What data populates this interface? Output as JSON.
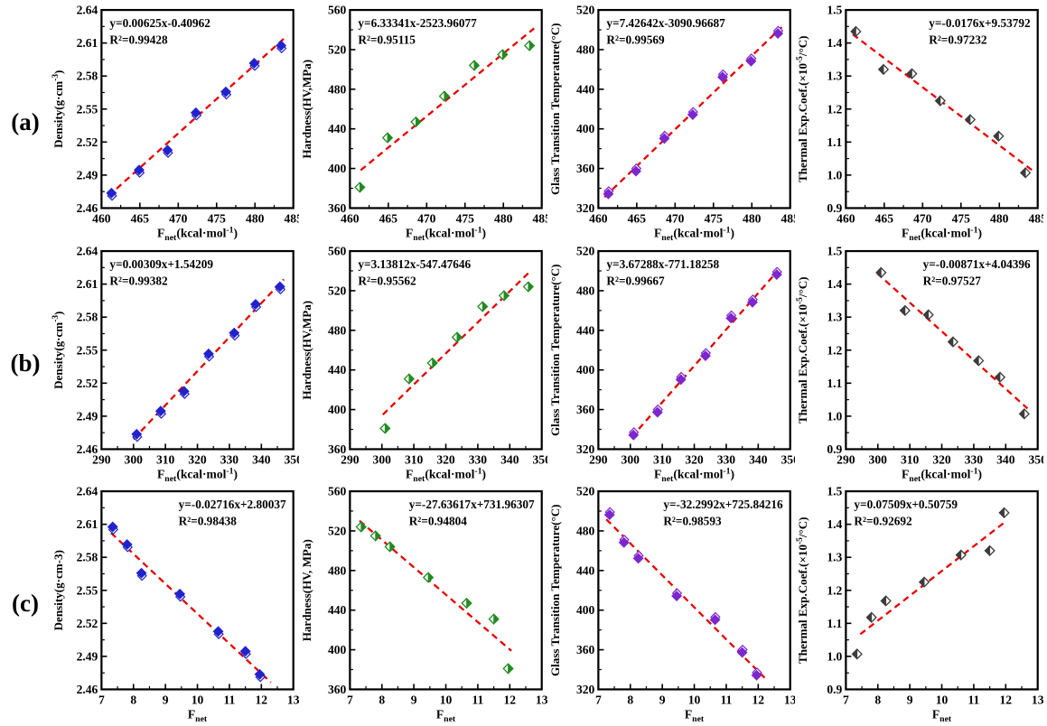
{
  "figure": {
    "background": "#ffffff",
    "row_labels": [
      {
        "id": "a",
        "text": "(a)"
      },
      {
        "id": "b",
        "text": "(b)"
      },
      {
        "id": "c",
        "text": "(c)"
      }
    ]
  },
  "colors": {
    "fit_line": "#e60000",
    "axis": "#000000",
    "density_marker": "#2222cc",
    "hardness_marker": "#228B22",
    "tg_marker": "#7D26CD",
    "tec_marker": "#3c3c3c"
  },
  "chart_data": [
    {
      "id": "a1",
      "type": "scatter",
      "equation": "y=0.00625x-0.40962",
      "r2": "0.99428",
      "eq_pos": "left",
      "xlabel": [
        {
          "t": "F"
        },
        {
          "t": "net",
          "sub": true
        },
        {
          "t": "(kcal·mol"
        },
        {
          "t": "-1",
          "sup": true
        },
        {
          "t": ")"
        }
      ],
      "ylabel": [
        {
          "t": "Density(g·cm"
        },
        {
          "t": "-3",
          "sup": true
        },
        {
          "t": ")"
        }
      ],
      "xlim": [
        460,
        485
      ],
      "xticks": [
        460,
        465,
        470,
        475,
        480,
        485
      ],
      "x_decimals": 0,
      "ylim": [
        2.46,
        2.64
      ],
      "yticks": [
        2.46,
        2.49,
        2.52,
        2.55,
        2.58,
        2.61,
        2.64
      ],
      "y_decimals": 2,
      "points": {
        "x": [
          461.3,
          464.9,
          468.6,
          472.3,
          476.2,
          479.9,
          483.4
        ],
        "y": [
          2.473,
          2.494,
          2.512,
          2.546,
          2.565,
          2.591,
          2.607
        ]
      },
      "fit": {
        "slope": 0.00625,
        "intercept": -0.40962,
        "x_start": 460.9,
        "x_end": 484.2
      },
      "marker": {
        "style": "dual-down",
        "color": "#2222cc"
      }
    },
    {
      "id": "a2",
      "type": "scatter",
      "equation": "y=6.33341x-2523.96077",
      "r2": "0.95115",
      "eq_pos": "left",
      "xlabel": [
        {
          "t": "F"
        },
        {
          "t": "net",
          "sub": true
        },
        {
          "t": "(kcal·mol"
        },
        {
          "t": "-1",
          "sup": true
        },
        {
          "t": ")"
        }
      ],
      "ylabel": [
        {
          "t": "Hardness(HV,MPa)"
        }
      ],
      "xlim": [
        460,
        485
      ],
      "xticks": [
        460,
        465,
        470,
        475,
        480,
        485
      ],
      "x_decimals": 0,
      "ylim": [
        360,
        560
      ],
      "yticks": [
        360,
        400,
        440,
        480,
        520,
        560
      ],
      "y_decimals": 0,
      "points": {
        "x": [
          461.3,
          464.9,
          468.6,
          472.3,
          476.2,
          479.9,
          483.4
        ],
        "y": [
          381,
          431,
          447,
          473,
          504,
          515,
          524
        ]
      },
      "fit": {
        "slope": 6.33341,
        "intercept": -2523.96077,
        "x_start": 461.4,
        "x_end": 484.0
      },
      "marker": {
        "style": "half-right",
        "color": "#228B22"
      }
    },
    {
      "id": "a3",
      "type": "scatter",
      "equation": "y=7.42642x-3090.96687",
      "r2": "0.99569",
      "eq_pos": "left",
      "xlabel": [
        {
          "t": "F"
        },
        {
          "t": "net",
          "sub": true
        },
        {
          "t": "(kcal·mol"
        },
        {
          "t": "-1",
          "sup": true
        },
        {
          "t": ")"
        }
      ],
      "ylabel": [
        {
          "t": "Glass Transition Temperature(°C)"
        }
      ],
      "xlim": [
        460,
        485
      ],
      "xticks": [
        460,
        465,
        470,
        475,
        480,
        485
      ],
      "x_decimals": 0,
      "ylim": [
        320,
        520
      ],
      "yticks": [
        320,
        360,
        400,
        440,
        480,
        520
      ],
      "y_decimals": 0,
      "points": {
        "x": [
          461.3,
          464.9,
          468.6,
          472.3,
          476.2,
          479.9,
          483.4
        ],
        "y": [
          335,
          358,
          391,
          415,
          453,
          469,
          497
        ]
      },
      "fit": {
        "slope": 7.42642,
        "intercept": -3090.96687,
        "x_start": 460.8,
        "x_end": 483.9
      },
      "marker": {
        "style": "dual-up",
        "color": "#7D26CD"
      }
    },
    {
      "id": "a4",
      "type": "scatter",
      "equation": "y=-0.0176x+9.53792",
      "r2": "0.97232",
      "eq_pos": "right",
      "xlabel": [
        {
          "t": "F"
        },
        {
          "t": "net",
          "sub": true
        },
        {
          "t": "(kcal·mol"
        },
        {
          "t": "-1",
          "sup": true
        },
        {
          "t": ")"
        }
      ],
      "ylabel": [
        {
          "t": "Thermal Exp.Coef.(×10"
        },
        {
          "t": "-5",
          "sup": true
        },
        {
          "t": "/°C)"
        }
      ],
      "xlim": [
        460,
        485
      ],
      "xticks": [
        460,
        465,
        470,
        475,
        480,
        485
      ],
      "x_decimals": 0,
      "ylim": [
        0.9,
        1.5
      ],
      "yticks": [
        0.9,
        1.0,
        1.1,
        1.2,
        1.3,
        1.4,
        1.5
      ],
      "y_decimals": 1,
      "points": {
        "x": [
          461.3,
          464.9,
          468.6,
          472.3,
          476.2,
          479.9,
          483.4
        ],
        "y": [
          1.435,
          1.32,
          1.307,
          1.225,
          1.168,
          1.118,
          1.007
        ]
      },
      "fit": {
        "slope": -0.0176,
        "intercept": 9.53792,
        "x_start": 460.9,
        "x_end": 484.3
      },
      "marker": {
        "style": "half-left",
        "color": "#3c3c3c"
      }
    },
    {
      "id": "b1",
      "type": "scatter",
      "equation": "y=0.00309x+1.54209",
      "r2": "0.99382",
      "eq_pos": "left",
      "xlabel": [
        {
          "t": "F"
        },
        {
          "t": "net",
          "sub": true
        },
        {
          "t": "(kcal·mol"
        },
        {
          "t": "-1",
          "sup": true
        },
        {
          "t": ")"
        }
      ],
      "ylabel": [
        {
          "t": "Density(g·cm"
        },
        {
          "t": "-3",
          "sup": true
        },
        {
          "t": ")"
        }
      ],
      "xlim": [
        290,
        350
      ],
      "xticks": [
        290,
        300,
        310,
        320,
        330,
        340,
        350
      ],
      "x_decimals": 0,
      "ylim": [
        2.46,
        2.64
      ],
      "yticks": [
        2.46,
        2.49,
        2.52,
        2.55,
        2.58,
        2.61,
        2.64
      ],
      "y_decimals": 2,
      "points": {
        "x": [
          301.0,
          308.5,
          315.8,
          323.5,
          331.5,
          338.2,
          345.8
        ],
        "y": [
          2.473,
          2.494,
          2.512,
          2.546,
          2.565,
          2.591,
          2.607
        ]
      },
      "fit": {
        "slope": 0.00309,
        "intercept": 1.54209,
        "x_start": 300.0,
        "x_end": 347.0
      },
      "marker": {
        "style": "dual-down",
        "color": "#2222cc"
      }
    },
    {
      "id": "b2",
      "type": "scatter",
      "equation": "y=3.13812x-547.47646",
      "r2": "0.95562",
      "eq_pos": "left",
      "xlabel": [
        {
          "t": "F"
        },
        {
          "t": "net",
          "sub": true
        },
        {
          "t": "(kcal·mol"
        },
        {
          "t": "-1",
          "sup": true
        },
        {
          "t": ")"
        }
      ],
      "ylabel": [
        {
          "t": "Hardness(HV,MPa)"
        }
      ],
      "xlim": [
        290,
        350
      ],
      "xticks": [
        290,
        300,
        310,
        320,
        330,
        340,
        350
      ],
      "x_decimals": 0,
      "ylim": [
        360,
        560
      ],
      "yticks": [
        360,
        400,
        440,
        480,
        520,
        560
      ],
      "y_decimals": 0,
      "points": {
        "x": [
          301.0,
          308.5,
          315.8,
          323.5,
          331.5,
          338.2,
          345.8
        ],
        "y": [
          381,
          431,
          447,
          473,
          504,
          515,
          524
        ]
      },
      "fit": {
        "slope": 3.13812,
        "intercept": -547.47646,
        "x_start": 300.3,
        "x_end": 346.6
      },
      "marker": {
        "style": "half-right",
        "color": "#228B22"
      }
    },
    {
      "id": "b3",
      "type": "scatter",
      "equation": "y=3.67288x-771.18258",
      "r2": "0.99667",
      "eq_pos": "left",
      "xlabel": [
        {
          "t": "F"
        },
        {
          "t": "net",
          "sub": true
        },
        {
          "t": "(kcal·mol"
        },
        {
          "t": "-1",
          "sup": true
        },
        {
          "t": ")"
        }
      ],
      "ylabel": [
        {
          "t": "Glass Transition Temperature(°C)"
        }
      ],
      "xlim": [
        290,
        350
      ],
      "xticks": [
        290,
        300,
        310,
        320,
        330,
        340,
        350
      ],
      "x_decimals": 0,
      "ylim": [
        320,
        520
      ],
      "yticks": [
        320,
        360,
        400,
        440,
        480,
        520
      ],
      "y_decimals": 0,
      "points": {
        "x": [
          301.0,
          308.5,
          315.8,
          323.5,
          331.5,
          338.2,
          345.8
        ],
        "y": [
          335,
          358,
          391,
          415,
          453,
          469,
          497
        ]
      },
      "fit": {
        "slope": 3.67288,
        "intercept": -771.18258,
        "x_start": 300.4,
        "x_end": 346.5
      },
      "marker": {
        "style": "dual-up",
        "color": "#7D26CD"
      }
    },
    {
      "id": "b4",
      "type": "scatter",
      "equation": "y=-0.00871x+4.04396",
      "r2": "0.97527",
      "eq_pos": "right",
      "xlabel": [
        {
          "t": "F"
        },
        {
          "t": "net",
          "sub": true
        },
        {
          "t": "(kcal·mol"
        },
        {
          "t": "-1",
          "sup": true
        },
        {
          "t": ")"
        }
      ],
      "ylabel": [
        {
          "t": "Thermal Exp.Coef.(×10"
        },
        {
          "t": "-5",
          "sup": true
        },
        {
          "t": "/°C)"
        }
      ],
      "xlim": [
        290,
        350
      ],
      "xticks": [
        290,
        300,
        310,
        320,
        330,
        340,
        350
      ],
      "x_decimals": 0,
      "ylim": [
        0.9,
        1.5
      ],
      "yticks": [
        0.9,
        1.0,
        1.1,
        1.2,
        1.3,
        1.4,
        1.5
      ],
      "y_decimals": 1,
      "points": {
        "x": [
          301.0,
          308.5,
          315.8,
          323.5,
          331.5,
          338.2,
          345.8
        ],
        "y": [
          1.435,
          1.32,
          1.307,
          1.225,
          1.168,
          1.118,
          1.007
        ]
      },
      "fit": {
        "slope": -0.00871,
        "intercept": 4.04396,
        "x_start": 299.8,
        "x_end": 346.8
      },
      "marker": {
        "style": "half-left",
        "color": "#3c3c3c"
      }
    },
    {
      "id": "c1",
      "type": "scatter",
      "equation": "y=-0.02716x+2.80037",
      "r2": "0.98438",
      "eq_pos": "right",
      "xlabel": [
        {
          "t": "F"
        },
        {
          "t": "net",
          "sub": true
        }
      ],
      "ylabel": [
        {
          "t": "Density(g·cm-3)"
        }
      ],
      "xlim": [
        7,
        13
      ],
      "xticks": [
        7,
        8,
        9,
        10,
        11,
        12,
        13
      ],
      "x_decimals": 0,
      "ylim": [
        2.46,
        2.64
      ],
      "yticks": [
        2.46,
        2.49,
        2.52,
        2.55,
        2.58,
        2.61,
        2.64
      ],
      "y_decimals": 2,
      "points": {
        "x": [
          7.35,
          7.8,
          8.25,
          9.45,
          10.65,
          11.5,
          11.95
        ],
        "y": [
          2.607,
          2.591,
          2.565,
          2.546,
          2.512,
          2.494,
          2.473
        ]
      },
      "fit": {
        "slope": -0.02716,
        "intercept": 2.80037,
        "x_start": 7.3,
        "x_end": 12.3
      },
      "marker": {
        "style": "dual-down",
        "color": "#2222cc"
      }
    },
    {
      "id": "c2",
      "type": "scatter",
      "equation": "y=-27.63617x+731.96307",
      "r2": "0.94804",
      "eq_pos": "right",
      "xlabel": [
        {
          "t": "F"
        },
        {
          "t": "net",
          "sub": true
        }
      ],
      "ylabel": [
        {
          "t": "Hardness(HV, MPa)"
        }
      ],
      "xlim": [
        7,
        13
      ],
      "xticks": [
        7,
        8,
        9,
        10,
        11,
        12,
        13
      ],
      "x_decimals": 0,
      "ylim": [
        360,
        560
      ],
      "yticks": [
        360,
        400,
        440,
        480,
        520,
        560
      ],
      "y_decimals": 0,
      "points": {
        "x": [
          7.35,
          7.8,
          8.25,
          9.45,
          10.65,
          11.5,
          11.95
        ],
        "y": [
          524,
          515,
          504,
          473,
          447,
          431,
          381
        ]
      },
      "fit": {
        "slope": -27.63617,
        "intercept": 731.96307,
        "x_start": 7.3,
        "x_end": 12.05
      },
      "marker": {
        "style": "half-right",
        "color": "#228B22"
      }
    },
    {
      "id": "c3",
      "type": "scatter",
      "equation": "y=-32.2992x+725.84216",
      "r2": "0.98593",
      "eq_pos": "right",
      "xlabel": [
        {
          "t": "F"
        },
        {
          "t": "net",
          "sub": true
        }
      ],
      "ylabel": [
        {
          "t": "Glass Transition Temperature(°C)"
        }
      ],
      "xlim": [
        7,
        13
      ],
      "xticks": [
        7,
        8,
        9,
        10,
        11,
        12,
        13
      ],
      "x_decimals": 0,
      "ylim": [
        320,
        520
      ],
      "yticks": [
        320,
        360,
        400,
        440,
        480,
        520
      ],
      "y_decimals": 0,
      "points": {
        "x": [
          7.35,
          7.8,
          8.25,
          9.45,
          10.65,
          11.5,
          11.95
        ],
        "y": [
          497,
          469,
          453,
          415,
          391,
          358,
          335
        ]
      },
      "fit": {
        "slope": -32.2992,
        "intercept": 725.84216,
        "x_start": 7.25,
        "x_end": 12.2
      },
      "marker": {
        "style": "dual-up",
        "color": "#7D26CD"
      }
    },
    {
      "id": "c4",
      "type": "scatter",
      "equation": "y=0.07509x+0.50759",
      "r2": "0.92692",
      "eq_pos": "left",
      "xlabel": [
        {
          "t": "F"
        },
        {
          "t": "net",
          "sub": true
        }
      ],
      "ylabel": [
        {
          "t": "Thermal Exp.Coef.(×10"
        },
        {
          "t": "-5",
          "sup": true
        },
        {
          "t": "/°C)"
        }
      ],
      "xlim": [
        7,
        13
      ],
      "xticks": [
        7,
        8,
        9,
        10,
        11,
        12,
        13
      ],
      "x_decimals": 0,
      "ylim": [
        0.9,
        1.5
      ],
      "yticks": [
        0.9,
        1.0,
        1.1,
        1.2,
        1.3,
        1.4,
        1.5
      ],
      "y_decimals": 1,
      "points": {
        "x": [
          7.35,
          7.8,
          8.25,
          9.45,
          10.6,
          11.5,
          11.95
        ],
        "y": [
          1.007,
          1.118,
          1.168,
          1.225,
          1.307,
          1.32,
          1.435
        ]
      },
      "fit": {
        "slope": 0.07509,
        "intercept": 0.50759,
        "x_start": 7.45,
        "x_end": 12.0
      },
      "marker": {
        "style": "half-left",
        "color": "#3c3c3c"
      }
    }
  ]
}
